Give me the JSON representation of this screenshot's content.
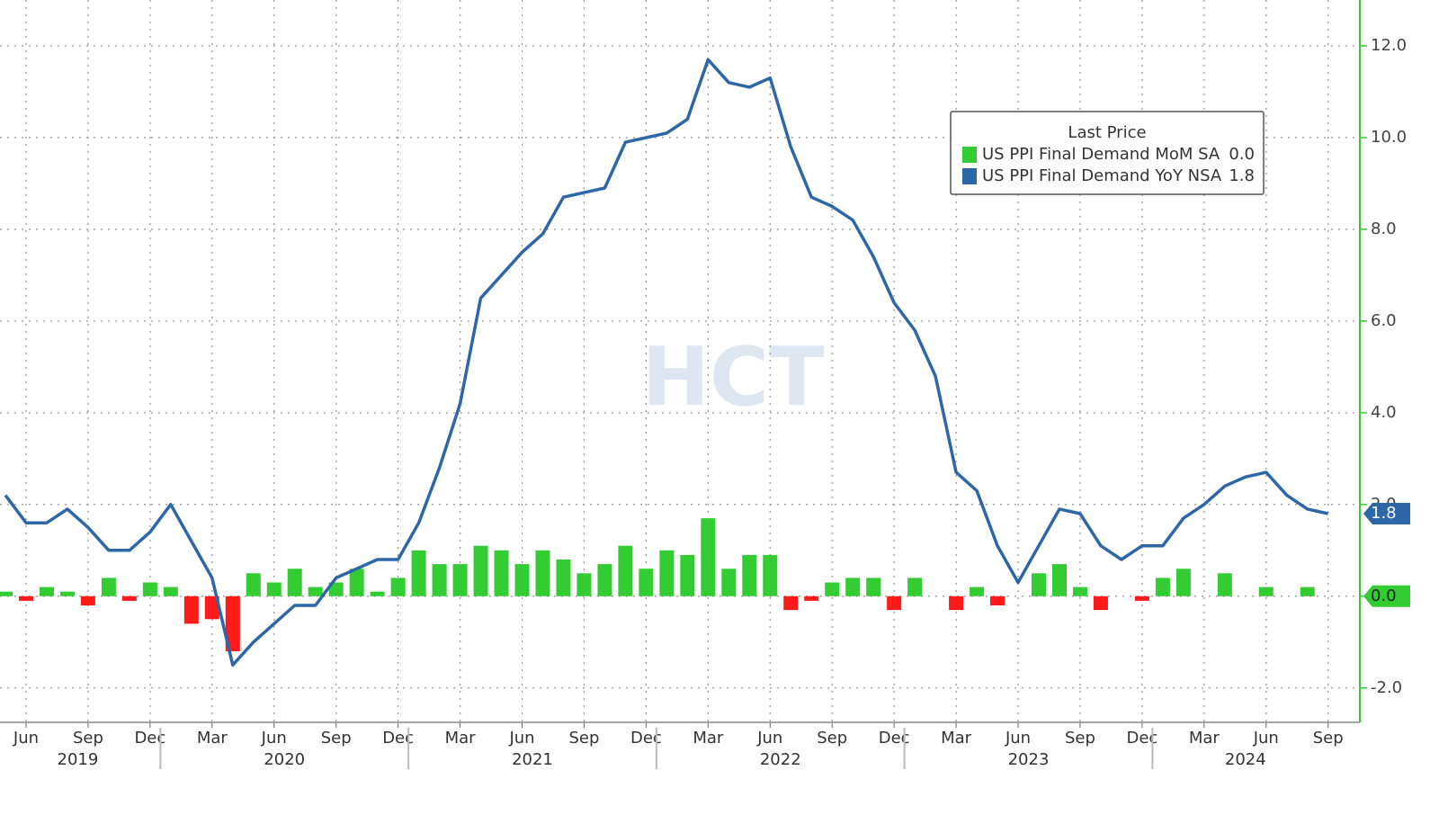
{
  "chart_data": {
    "type": "bar-line",
    "watermark": "HCT",
    "legend_title": "Last Price",
    "categories": [
      "2019-05",
      "2019-06",
      "2019-07",
      "2019-08",
      "2019-09",
      "2019-10",
      "2019-11",
      "2019-12",
      "2020-01",
      "2020-02",
      "2020-03",
      "2020-04",
      "2020-05",
      "2020-06",
      "2020-07",
      "2020-08",
      "2020-09",
      "2020-10",
      "2020-11",
      "2020-12",
      "2021-01",
      "2021-02",
      "2021-03",
      "2021-04",
      "2021-05",
      "2021-06",
      "2021-07",
      "2021-08",
      "2021-09",
      "2021-10",
      "2021-11",
      "2021-12",
      "2022-01",
      "2022-02",
      "2022-03",
      "2022-04",
      "2022-05",
      "2022-06",
      "2022-07",
      "2022-08",
      "2022-09",
      "2022-10",
      "2022-11",
      "2022-12",
      "2023-01",
      "2023-02",
      "2023-03",
      "2023-04",
      "2023-05",
      "2023-06",
      "2023-07",
      "2023-08",
      "2023-09",
      "2023-10",
      "2023-11",
      "2023-12",
      "2024-01",
      "2024-02",
      "2024-03",
      "2024-04",
      "2024-05",
      "2024-06",
      "2024-07",
      "2024-08",
      "2024-09"
    ],
    "series": [
      {
        "name": "US PPI Final Demand MoM SA",
        "kind": "bar",
        "color": "#33cc33",
        "negative_color": "#ff1a1a",
        "last_value_label": "0.0",
        "values": [
          0.1,
          -0.1,
          0.2,
          0.1,
          -0.2,
          0.4,
          -0.1,
          0.3,
          0.2,
          -0.6,
          -0.5,
          -1.2,
          0.5,
          0.3,
          0.6,
          0.2,
          0.3,
          0.6,
          0.1,
          0.4,
          1.0,
          0.7,
          0.7,
          1.1,
          1.0,
          0.7,
          1.0,
          0.8,
          0.5,
          0.7,
          1.1,
          0.6,
          1.0,
          0.9,
          1.7,
          0.6,
          0.9,
          0.9,
          -0.3,
          -0.1,
          0.3,
          0.4,
          0.4,
          -0.3,
          0.4,
          0.0,
          -0.3,
          0.2,
          -0.2,
          0.0,
          0.5,
          0.7,
          0.2,
          -0.3,
          0.0,
          -0.1,
          0.4,
          0.6,
          0.0,
          0.5,
          0.0,
          0.2,
          0.0,
          0.2,
          0.0
        ]
      },
      {
        "name": "US PPI Final Demand YoY NSA",
        "kind": "line",
        "color": "#2e67a8",
        "last_value_label": "1.8",
        "values": [
          2.2,
          1.6,
          1.6,
          1.9,
          1.5,
          1.0,
          1.0,
          1.4,
          2.0,
          1.2,
          0.4,
          -1.5,
          -1.0,
          -0.6,
          -0.2,
          -0.2,
          0.4,
          0.6,
          0.8,
          0.8,
          1.6,
          2.8,
          4.2,
          6.5,
          7.0,
          7.5,
          7.9,
          8.7,
          8.8,
          8.9,
          9.9,
          10.0,
          10.1,
          10.4,
          11.7,
          11.2,
          11.1,
          11.3,
          9.8,
          8.7,
          8.5,
          8.2,
          7.4,
          6.4,
          5.8,
          4.8,
          2.7,
          2.3,
          1.1,
          0.3,
          1.1,
          1.9,
          1.8,
          1.1,
          0.8,
          1.1,
          1.1,
          1.7,
          2.0,
          2.4,
          2.6,
          2.7,
          2.2,
          1.9,
          1.8
        ]
      }
    ],
    "ylim": [
      -2.75,
      13.0
    ],
    "yticks": [
      {
        "value": -2,
        "label": "-2.0"
      },
      {
        "value": 0,
        "label": "0.0"
      },
      {
        "value": 2,
        "label": "2.0"
      },
      {
        "value": 4,
        "label": "4.0"
      },
      {
        "value": 6,
        "label": "6.0"
      },
      {
        "value": 8,
        "label": "8.0"
      },
      {
        "value": 10,
        "label": "10.0"
      },
      {
        "value": 12,
        "label": "12.0"
      }
    ],
    "xticks": [
      {
        "value": "2019-06",
        "label": "Jun"
      },
      {
        "value": "2019-09",
        "label": "Sep"
      },
      {
        "value": "2019-12",
        "label": "Dec"
      },
      {
        "value": "2020-03",
        "label": "Mar"
      },
      {
        "value": "2020-06",
        "label": "Jun"
      },
      {
        "value": "2020-09",
        "label": "Sep"
      },
      {
        "value": "2020-12",
        "label": "Dec"
      },
      {
        "value": "2021-03",
        "label": "Mar"
      },
      {
        "value": "2021-06",
        "label": "Jun"
      },
      {
        "value": "2021-09",
        "label": "Sep"
      },
      {
        "value": "2021-12",
        "label": "Dec"
      },
      {
        "value": "2022-03",
        "label": "Mar"
      },
      {
        "value": "2022-06",
        "label": "Jun"
      },
      {
        "value": "2022-09",
        "label": "Sep"
      },
      {
        "value": "2022-12",
        "label": "Dec"
      },
      {
        "value": "2023-03",
        "label": "Mar"
      },
      {
        "value": "2023-06",
        "label": "Jun"
      },
      {
        "value": "2023-09",
        "label": "Sep"
      },
      {
        "value": "2023-12",
        "label": "Dec"
      },
      {
        "value": "2024-03",
        "label": "Mar"
      },
      {
        "value": "2024-06",
        "label": "Jun"
      },
      {
        "value": "2024-09",
        "label": "Sep"
      }
    ],
    "year_labels": [
      "2019",
      "2020",
      "2021",
      "2022",
      "2023",
      "2024"
    ],
    "grid": true,
    "y_axis_side": "right"
  }
}
